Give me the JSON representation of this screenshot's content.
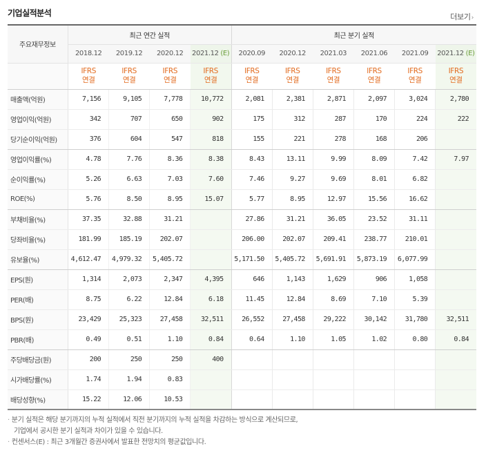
{
  "section_title": "기업실적분석",
  "more_link": "더보기",
  "table": {
    "row_header_label": "주요재무정보",
    "group_annual": "최근 연간 실적",
    "group_quarter": "최근 분기 실적",
    "periods": [
      "2018.12",
      "2019.12",
      "2020.12",
      "2021.12",
      "2020.09",
      "2020.12",
      "2021.03",
      "2021.06",
      "2021.09",
      "2021.12"
    ],
    "estimate_mark": "(E)",
    "ifrs_label": "IFRS",
    "basis_label": "연결",
    "rows": [
      {
        "label": "매출액(억원)",
        "v": [
          "7,156",
          "9,105",
          "7,778",
          "10,772",
          "2,081",
          "2,381",
          "2,871",
          "2,097",
          "3,024",
          "2,780"
        ]
      },
      {
        "label": "영업이익(억원)",
        "v": [
          "342",
          "707",
          "650",
          "902",
          "175",
          "312",
          "287",
          "170",
          "224",
          "222"
        ]
      },
      {
        "label": "당기순이익(억원)",
        "v": [
          "376",
          "604",
          "547",
          "818",
          "155",
          "221",
          "278",
          "168",
          "206",
          ""
        ]
      },
      {
        "label": "영업이익률(%)",
        "v": [
          "4.78",
          "7.76",
          "8.36",
          "8.38",
          "8.43",
          "13.11",
          "9.99",
          "8.09",
          "7.42",
          "7.97"
        ]
      },
      {
        "label": "순이익률(%)",
        "v": [
          "5.26",
          "6.63",
          "7.03",
          "7.60",
          "7.46",
          "9.27",
          "9.69",
          "8.01",
          "6.82",
          ""
        ]
      },
      {
        "label": "ROE(%)",
        "v": [
          "5.76",
          "8.50",
          "8.95",
          "15.07",
          "5.77",
          "8.95",
          "12.97",
          "15.56",
          "16.62",
          ""
        ]
      },
      {
        "label": "부채비율(%)",
        "v": [
          "37.35",
          "32.88",
          "31.21",
          "",
          "27.86",
          "31.21",
          "36.05",
          "23.52",
          "31.11",
          ""
        ]
      },
      {
        "label": "당좌비율(%)",
        "v": [
          "181.99",
          "185.19",
          "202.07",
          "",
          "206.00",
          "202.07",
          "209.41",
          "238.77",
          "210.01",
          ""
        ]
      },
      {
        "label": "유보율(%)",
        "v": [
          "4,612.47",
          "4,979.32",
          "5,405.72",
          "",
          "5,171.50",
          "5,405.72",
          "5,691.91",
          "5,873.19",
          "6,077.99",
          ""
        ]
      },
      {
        "label": "EPS(원)",
        "v": [
          "1,314",
          "2,073",
          "2,347",
          "4,395",
          "646",
          "1,143",
          "1,629",
          "906",
          "1,058",
          ""
        ]
      },
      {
        "label": "PER(배)",
        "v": [
          "8.75",
          "6.22",
          "12.84",
          "6.18",
          "11.45",
          "12.84",
          "8.69",
          "7.10",
          "5.39",
          ""
        ]
      },
      {
        "label": "BPS(원)",
        "v": [
          "23,429",
          "25,323",
          "27,458",
          "32,511",
          "26,552",
          "27,458",
          "29,222",
          "30,142",
          "31,780",
          "32,511"
        ]
      },
      {
        "label": "PBR(배)",
        "v": [
          "0.49",
          "0.51",
          "1.10",
          "0.84",
          "0.64",
          "1.10",
          "1.05",
          "1.02",
          "0.80",
          "0.84"
        ]
      },
      {
        "label": "주당배당금(원)",
        "v": [
          "200",
          "250",
          "250",
          "400",
          "",
          "",
          "",
          "",
          "",
          ""
        ]
      },
      {
        "label": "시가배당률(%)",
        "v": [
          "1.74",
          "1.94",
          "0.83",
          "",
          "",
          "",
          "",
          "",
          "",
          ""
        ]
      },
      {
        "label": "배당성향(%)",
        "v": [
          "15.22",
          "12.06",
          "10.53",
          "",
          "",
          "",
          "",
          "",
          "",
          ""
        ]
      }
    ]
  },
  "notes": {
    "line1": "분기 실적은 해당 분기까지의 누적 실적에서 직전 분기까지의 누적 실적을 차감하는 방식으로 계산되므로,",
    "line2": "기업에서 공시한 분기 실적과 차이가 있을 수 있습니다.",
    "line3": "컨센서스(E) : 최근 3개월간 증권사에서 발표한 전망치의 평균값입니다."
  }
}
